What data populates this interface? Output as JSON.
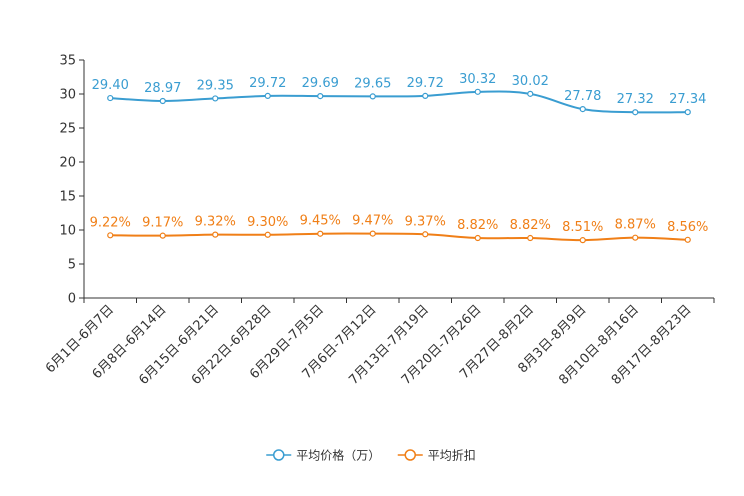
{
  "chart_data": {
    "type": "line",
    "title": "",
    "xlabel": "",
    "ylabel": "",
    "ylim": [
      0,
      35
    ],
    "yticks": [
      0,
      5,
      10,
      15,
      20,
      25,
      30,
      35
    ],
    "grid": false,
    "legend_position": "bottom-center",
    "categories": [
      "6月1日-6月7日",
      "6月8日-6月14日",
      "6月15日-6月21日",
      "6月22日-6月28日",
      "6月29日-7月5日",
      "7月6日-7月12日",
      "7月13日-7月19日",
      "7月20日-7月26日",
      "7月27日-8月2日",
      "8月3日-8月9日",
      "8月10日-8月16日",
      "8月17日-8月23日"
    ],
    "series": [
      {
        "name": "平均价格（万）",
        "color": "#3a9dd1",
        "values": [
          29.4,
          28.97,
          29.35,
          29.72,
          29.69,
          29.65,
          29.72,
          30.32,
          30.02,
          27.78,
          27.32,
          27.34
        ],
        "labels": [
          "29.40",
          "28.97",
          "29.35",
          "29.72",
          "29.69",
          "29.65",
          "29.72",
          "30.32",
          "30.02",
          "27.78",
          "27.32",
          "27.34"
        ]
      },
      {
        "name": "平均折扣",
        "color": "#f07f17",
        "values": [
          9.22,
          9.17,
          9.32,
          9.3,
          9.45,
          9.47,
          9.37,
          8.82,
          8.82,
          8.51,
          8.87,
          8.56
        ],
        "labels": [
          "9.22%",
          "9.17%",
          "9.32%",
          "9.30%",
          "9.45%",
          "9.47%",
          "9.37%",
          "8.82%",
          "8.82%",
          "8.51%",
          "8.87%",
          "8.56%"
        ]
      }
    ]
  }
}
